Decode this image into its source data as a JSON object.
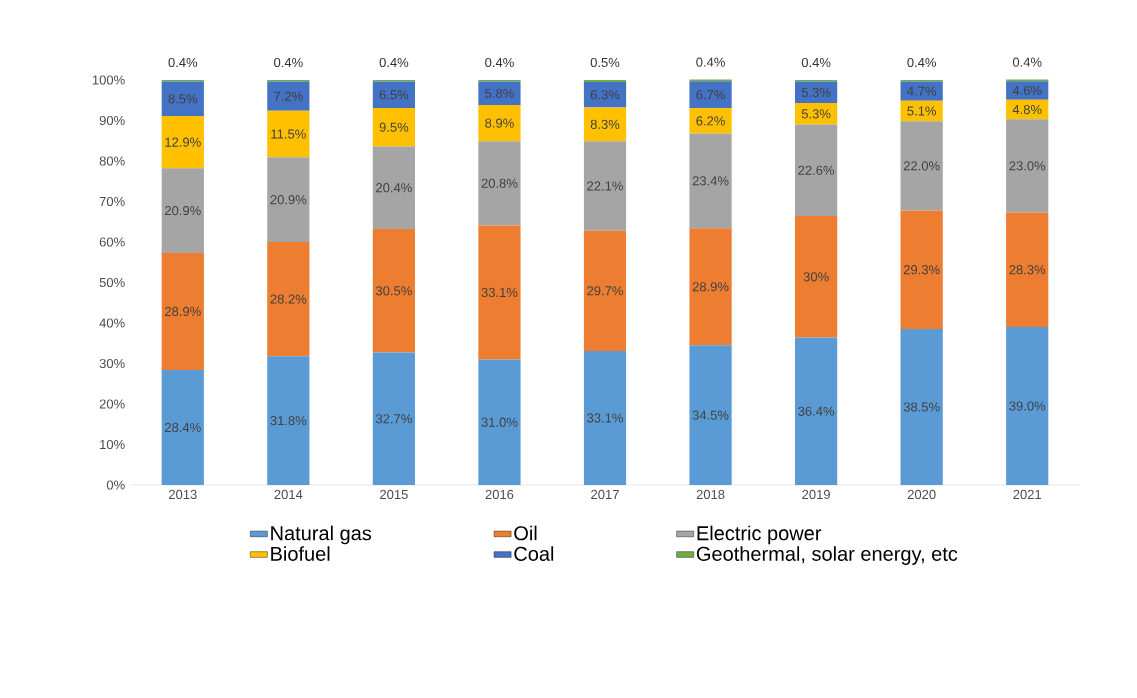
{
  "chart_data": {
    "type": "bar",
    "stacked": true,
    "categories": [
      "2013",
      "2014",
      "2015",
      "2016",
      "2017",
      "2018",
      "2019",
      "2020",
      "2021"
    ],
    "ylim": [
      0,
      100
    ],
    "yticks": [
      {
        "value": 0,
        "label": "0%"
      },
      {
        "value": 10,
        "label": "10%"
      },
      {
        "value": 20,
        "label": "20%"
      },
      {
        "value": 30,
        "label": "30%"
      },
      {
        "value": 40,
        "label": "40%"
      },
      {
        "value": 50,
        "label": "50%"
      },
      {
        "value": 60,
        "label": "60%"
      },
      {
        "value": 70,
        "label": "70%"
      },
      {
        "value": 80,
        "label": "80%"
      },
      {
        "value": 90,
        "label": "90%"
      },
      {
        "value": 100,
        "label": "100%"
      }
    ],
    "legend": "bottom",
    "grid": false,
    "series": [
      {
        "name": "Natural gas",
        "color": "#5b9bd5",
        "values": [
          28.4,
          31.8,
          32.7,
          31.0,
          33.1,
          34.5,
          36.4,
          38.5,
          39.0
        ],
        "value_labels": [
          "28.4%",
          "31.8%",
          "32.7%",
          "31.0%",
          "33.1%",
          "34.5%",
          "36.4%",
          "38.5%",
          "39.0%"
        ]
      },
      {
        "name": "Oil",
        "color": "#ed7d31",
        "values": [
          28.9,
          28.2,
          30.5,
          33.1,
          29.7,
          28.9,
          30,
          29.3,
          28.3
        ],
        "value_labels": [
          "28.9%",
          "28.2%",
          "30.5%",
          "33.1%",
          "29.7%",
          "28.9%",
          "30%",
          "29.3%",
          "28.3%"
        ]
      },
      {
        "name": "Electric power",
        "color": "#a5a5a5",
        "values": [
          20.9,
          20.9,
          20.4,
          20.8,
          22.1,
          23.4,
          22.6,
          22.0,
          23.0
        ],
        "value_labels": [
          "20.9%",
          "20.9%",
          "20.4%",
          "20.8%",
          "22.1%",
          "23.4%",
          "22.6%",
          "22.0%",
          "23.0%"
        ]
      },
      {
        "name": "Biofuel",
        "color": "#ffc000",
        "values": [
          12.9,
          11.5,
          9.5,
          8.9,
          8.3,
          6.2,
          5.3,
          5.1,
          4.8
        ],
        "value_labels": [
          "12.9%",
          "11.5%",
          "9.5%",
          "8.9%",
          "8.3%",
          "6.2%",
          "5.3%",
          "5.1%",
          "4.8%"
        ]
      },
      {
        "name": "Coal",
        "color": "#4472c4",
        "values": [
          8.5,
          7.2,
          6.5,
          5.8,
          6.3,
          6.7,
          5.3,
          4.7,
          4.6
        ],
        "value_labels": [
          "8.5%",
          "7.2%",
          "6.5%",
          "5.8%",
          "6.3%",
          "6.7%",
          "5.3%",
          "4.7%",
          "4.6%"
        ]
      },
      {
        "name": "Geothermal, solar energy, etc",
        "color": "#70ad47",
        "values": [
          0.4,
          0.4,
          0.4,
          0.4,
          0.5,
          0.4,
          0.4,
          0.4,
          0.4
        ],
        "value_labels": [
          "0.4%",
          "0.4%",
          "0.4%",
          "0.4%",
          "0.5%",
          "0.4%",
          "0.4%",
          "0.4%",
          "0.4%"
        ]
      }
    ]
  }
}
